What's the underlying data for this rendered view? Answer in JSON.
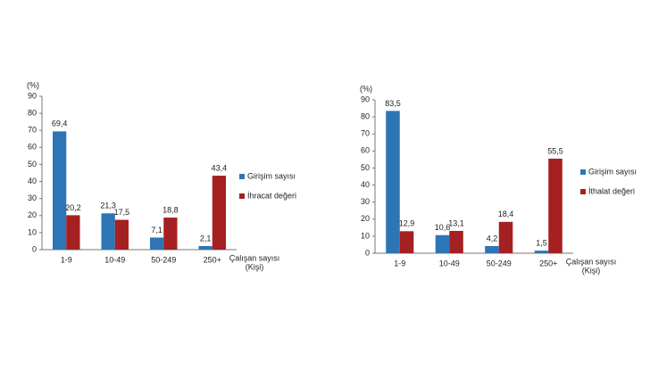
{
  "chart_data": [
    {
      "type": "bar",
      "ylabel": "(%)",
      "xlabel": [
        "Çalışan sayısı",
        "(Kişi)"
      ],
      "categories": [
        "1-9",
        "10-49",
        "50-249",
        "250+"
      ],
      "series": [
        {
          "name": "Girişim sayısı",
          "color": "#2e75b6",
          "values": [
            69.4,
            21.3,
            7.1,
            2.1
          ],
          "value_labels": [
            "69,4",
            "21,3",
            "7,1",
            "2,1"
          ]
        },
        {
          "name": "İhracat değeri",
          "color": "#a52020",
          "values": [
            20.2,
            17.5,
            18.8,
            43.4
          ],
          "value_labels": [
            "20,2",
            "17,5",
            "18,8",
            "43,4"
          ]
        }
      ],
      "ylim": [
        0,
        90
      ],
      "yticks": [
        0,
        10,
        20,
        30,
        40,
        50,
        60,
        70,
        80,
        90
      ],
      "legend": "right"
    },
    {
      "type": "bar",
      "ylabel": "(%)",
      "xlabel": [
        "Çalışan sayısı",
        "(Kişi)"
      ],
      "categories": [
        "1-9",
        "10-49",
        "50-249",
        "250+"
      ],
      "series": [
        {
          "name": "Girişim sayısı",
          "color": "#2e75b6",
          "values": [
            83.5,
            10.6,
            4.2,
            1.5
          ],
          "value_labels": [
            "83,5",
            "10,6",
            "4,2",
            "1,5"
          ]
        },
        {
          "name": "İthalat değeri",
          "color": "#a52020",
          "values": [
            12.9,
            13.1,
            18.4,
            55.5
          ],
          "value_labels": [
            "12,9",
            "13,1",
            "18,4",
            "55,5"
          ]
        }
      ],
      "ylim": [
        0,
        90
      ],
      "yticks": [
        0,
        10,
        20,
        30,
        40,
        50,
        60,
        70,
        80,
        90
      ],
      "legend": "right"
    }
  ]
}
